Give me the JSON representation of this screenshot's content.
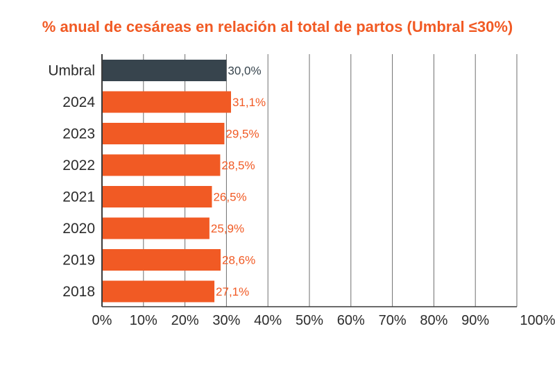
{
  "colors": {
    "accent": "#f15a24",
    "threshold": "#37444d",
    "axis": "#3a3a3a",
    "grid": "#6e6e6e",
    "text": "#2b2b2b"
  },
  "chart_data": {
    "type": "bar",
    "orientation": "horizontal",
    "title": "% anual de cesáreas en relación al total de partos (Umbral ≤30%)",
    "xlabel": "",
    "ylabel": "",
    "categories": [
      "Umbral",
      "2024",
      "2023",
      "2022",
      "2021",
      "2020",
      "2019",
      "2018"
    ],
    "values": [
      30.0,
      31.1,
      29.5,
      28.5,
      26.5,
      25.9,
      28.6,
      27.1
    ],
    "value_labels": [
      "30,0%",
      "31,1%",
      "29,5%",
      "28,5%",
      "26,5%",
      "25,9%",
      "28,6%",
      "27,1%"
    ],
    "highlight": [
      "threshold",
      "normal",
      "normal",
      "normal",
      "normal",
      "normal",
      "normal",
      "normal"
    ],
    "xlim": [
      0,
      100
    ],
    "ticks": [
      0,
      10,
      20,
      30,
      40,
      50,
      60,
      70,
      80,
      90,
      100
    ],
    "tick_labels": [
      "0%",
      "10%",
      "20%",
      "30%",
      "40%",
      "50%",
      "60%",
      "70%",
      "80%",
      "90%",
      "100%"
    ],
    "grid": true,
    "legend": "none"
  }
}
